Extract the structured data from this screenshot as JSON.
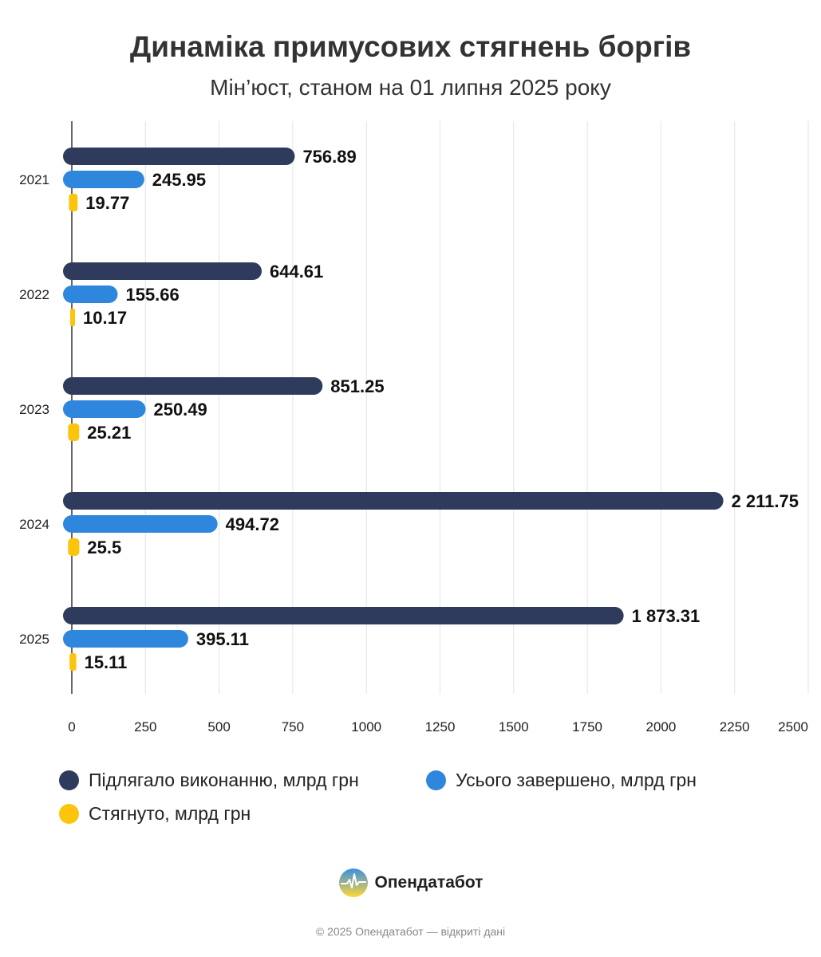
{
  "chart_data": {
    "type": "bar",
    "orientation": "horizontal",
    "title": "Динаміка примусових стягнень боргів",
    "subtitle": "Мін’юст, станом на 01 липня 2025 року",
    "categories": [
      "2021",
      "2022",
      "2023",
      "2024",
      "2025"
    ],
    "series": [
      {
        "name": "Підлягало виконанню, млрд грн",
        "color": "#2f3b5c",
        "values": [
          756.89,
          644.61,
          851.25,
          2211.75,
          1873.31
        ],
        "labels": [
          "756.89",
          "644.61",
          "851.25",
          "2 211.75",
          "1 873.31"
        ]
      },
      {
        "name": "Усього завершено, млрд грн",
        "color": "#2f86dd",
        "values": [
          245.95,
          155.66,
          250.49,
          494.72,
          395.11
        ],
        "labels": [
          "245.95",
          "155.66",
          "250.49",
          "494.72",
          "395.11"
        ]
      },
      {
        "name": "Стягнуто, млрд грн",
        "color": "#fdc40c",
        "values": [
          19.77,
          10.17,
          25.21,
          25.5,
          15.11
        ],
        "labels": [
          "19.77",
          "10.17",
          "25.21",
          "25.5",
          "15.11"
        ]
      }
    ],
    "xlim": [
      0,
      2500
    ],
    "xticks": [
      0,
      250,
      500,
      750,
      1000,
      1250,
      1500,
      1750,
      2000,
      2250,
      2500
    ],
    "xtick_labels": [
      "0",
      "250",
      "500",
      "750",
      "1000",
      "1250",
      "1500",
      "1750",
      "2000",
      "2250",
      "2500"
    ],
    "grid": true,
    "legend_position": "bottom"
  },
  "brand": {
    "name": "Опендатабот",
    "logo_icon": "opendatabot-logo-icon",
    "colors": {
      "top": "#3a8ee6",
      "bottom": "#fdd835",
      "pulse": "#ffffff"
    }
  },
  "footer": {
    "text": "© 2025 Опендатабот — відкриті дані"
  }
}
